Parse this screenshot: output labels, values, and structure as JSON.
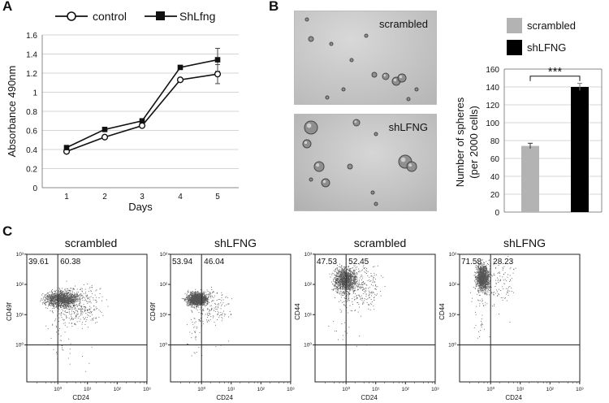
{
  "panels": {
    "a": "A",
    "b": "B",
    "c": "C"
  },
  "chart_data": [
    {
      "type": "line",
      "panel": "A",
      "xlabel": "Days",
      "ylabel": "Absorbance 490nm",
      "x": [
        1,
        2,
        3,
        4,
        5
      ],
      "xticks": [
        "1",
        "2",
        "3",
        "4",
        "5"
      ],
      "yticks": [
        "0",
        "0.2",
        "0.4",
        "0.6",
        "0.8",
        "1",
        "1.2",
        "1.4",
        "1.6"
      ],
      "ylim": [
        0,
        1.6
      ],
      "grid": true,
      "legend_position": "top",
      "series": [
        {
          "name": "control",
          "marker": "open-circle",
          "values": [
            0.38,
            0.53,
            0.65,
            1.13,
            1.19
          ],
          "errors": [
            0.01,
            0.01,
            0.01,
            0.02,
            0.1
          ]
        },
        {
          "name": "ShLfng",
          "marker": "filled-square",
          "values": [
            0.42,
            0.61,
            0.7,
            1.26,
            1.34
          ],
          "errors": [
            0.01,
            0.01,
            0.01,
            0.02,
            0.12
          ]
        }
      ]
    },
    {
      "type": "bar",
      "panel": "B",
      "ylabel": "Number of spheres (per 2000 cells)",
      "ylabel_lines": [
        "Number of spheres",
        "(per 2000 cells)"
      ],
      "categories": [
        "scrambled",
        "shLFNG"
      ],
      "values": [
        74,
        140
      ],
      "errors": [
        3,
        4
      ],
      "colors": [
        "#b3b3b3",
        "#000000"
      ],
      "ylim": [
        0,
        160
      ],
      "yticks": [
        "0",
        "20",
        "40",
        "60",
        "80",
        "100",
        "120",
        "140",
        "160"
      ],
      "grid": true,
      "legend_position": "top",
      "significance": "***"
    },
    {
      "type": "scatter",
      "panel": "C",
      "plots": [
        {
          "title": "scrambled",
          "xlabel": "CD24",
          "ylabel": "CD49f",
          "q_left": "39.61",
          "q_right": "60.38"
        },
        {
          "title": "shLFNG",
          "xlabel": "CD24",
          "ylabel": "CD49f",
          "q_left": "53.94",
          "q_right": "46.04"
        },
        {
          "title": "scrambled",
          "xlabel": "CD24",
          "ylabel": "CD44",
          "q_left": "47.53",
          "q_right": "52.45"
        },
        {
          "title": "shLFNG",
          "xlabel": "CD24",
          "ylabel": "CD44",
          "q_left": "71.58",
          "q_right": "28.23"
        }
      ],
      "xticks": [
        "10⁰",
        "10¹",
        "10²",
        "10³"
      ],
      "yticks": [
        "10⁰",
        "10¹",
        "10²",
        "10³"
      ]
    }
  ],
  "images": {
    "top_label": "scrambled",
    "bottom_label": "shLFNG",
    "top_spheres": [
      [
        15,
        10,
        2
      ],
      [
        20,
        34,
        3
      ],
      [
        45,
        40,
        2
      ],
      [
        98,
        78,
        3
      ],
      [
        112,
        80,
        4
      ],
      [
        125,
        86,
        5
      ],
      [
        132,
        82,
        5
      ],
      [
        40,
        106,
        2
      ],
      [
        150,
        96,
        2
      ],
      [
        70,
        60,
        2
      ],
      [
        88,
        30,
        2
      ],
      [
        60,
        96,
        2
      ],
      [
        140,
        108,
        2
      ]
    ],
    "bottom_spheres": [
      [
        20,
        16,
        8
      ],
      [
        15,
        36,
        5
      ],
      [
        76,
        10,
        4
      ],
      [
        100,
        24,
        2
      ],
      [
        30,
        64,
        6
      ],
      [
        20,
        80,
        2
      ],
      [
        68,
        64,
        3
      ],
      [
        38,
        84,
        5
      ],
      [
        136,
        58,
        8
      ],
      [
        144,
        64,
        6
      ],
      [
        96,
        96,
        2
      ],
      [
        100,
        110,
        2
      ]
    ]
  }
}
